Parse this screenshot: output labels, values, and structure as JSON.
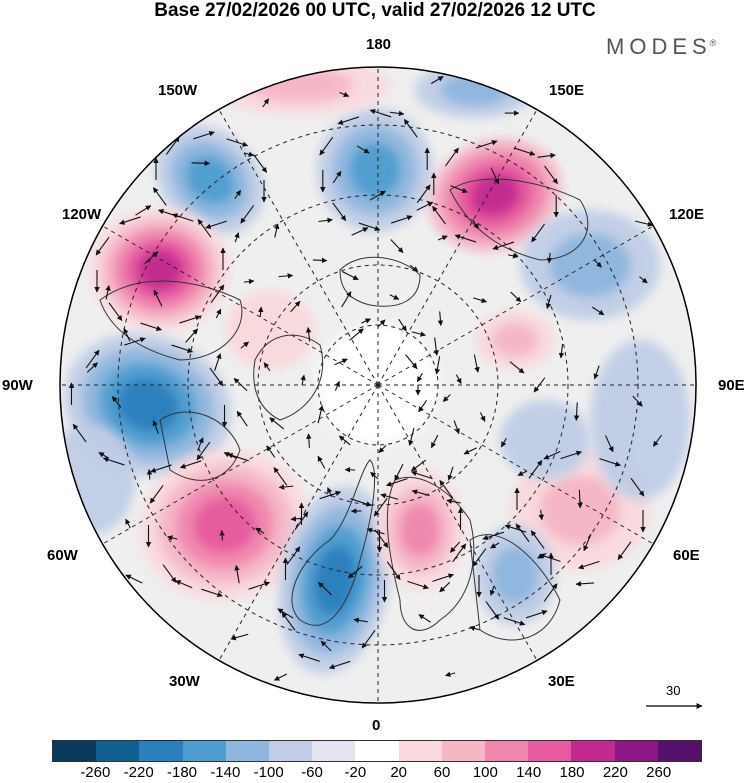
{
  "header": {
    "title": "Base 27/02/2026 00 UTC, valid 27/02/2026 12 UTC",
    "brand": "MODES",
    "brand_mark": "®"
  },
  "map": {
    "projection": "north-polar-stereographic",
    "longitude_labels": {
      "top": "180",
      "top_left": "150W",
      "top_right": "150E",
      "upper_left": "120W",
      "upper_right": "120E",
      "left": "90W",
      "right": "90E",
      "lower_left": "60W",
      "lower_right": "60E",
      "bottom_left": "30W",
      "bottom_right": "30E",
      "bottom": "0"
    },
    "vector_scale_label": "30"
  },
  "colorbar": {
    "ticks": [
      "-260",
      "-220",
      "-180",
      "-140",
      "-100",
      "-60",
      "-20",
      "20",
      "60",
      "100",
      "140",
      "180",
      "220",
      "260"
    ],
    "colors": [
      "#0a3a5c",
      "#11608f",
      "#2a7fbe",
      "#4f9dd0",
      "#8eb6de",
      "#c0cde6",
      "#e4e3f0",
      "#ffffff",
      "#f9d9dd",
      "#f5b6c6",
      "#ef86ae",
      "#e65a9f",
      "#c22a8f",
      "#8e1788",
      "#55106e"
    ]
  }
}
